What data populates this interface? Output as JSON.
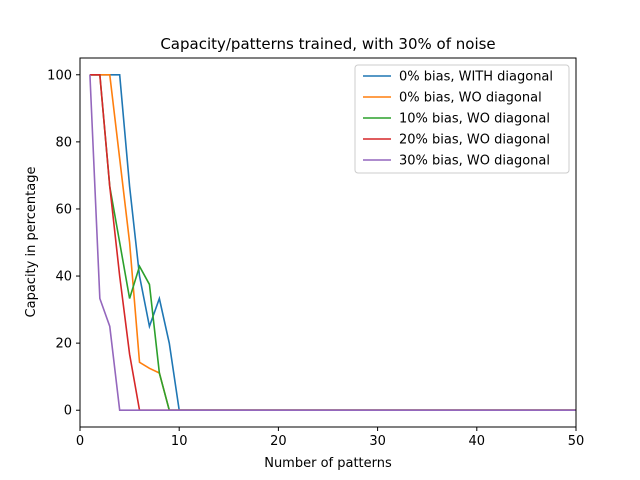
{
  "chart_data": {
    "type": "line",
    "title": "Capacity/patterns trained, with 30% of noise",
    "xlabel": "Number of patterns",
    "ylabel": "Capacity in percentage",
    "xlim": [
      0,
      50
    ],
    "ylim": [
      -5,
      105
    ],
    "xticks": [
      0,
      10,
      20,
      30,
      40,
      50
    ],
    "yticks": [
      0,
      20,
      40,
      60,
      80,
      100
    ],
    "grid": false,
    "legend_position": "top-right",
    "series": [
      {
        "name": "0% bias, WITH diagonal",
        "color": "#1f77b4",
        "x": [
          1,
          2,
          3,
          4,
          5,
          6,
          7,
          8,
          9,
          10,
          11,
          12,
          15,
          20,
          30,
          40,
          50
        ],
        "y": [
          100,
          100,
          100,
          100,
          66.7,
          40,
          25,
          33.3,
          20,
          0,
          0,
          0,
          0,
          0,
          0,
          0,
          0
        ]
      },
      {
        "name": "0% bias, WO diagonal",
        "color": "#ff7f0e",
        "x": [
          1,
          2,
          3,
          4,
          5,
          6,
          7,
          8,
          9,
          10,
          11,
          12,
          15,
          20,
          30,
          40,
          50
        ],
        "y": [
          100,
          100,
          100,
          75,
          50,
          14.3,
          12.5,
          11.1,
          0,
          0,
          0,
          0,
          0,
          0,
          0,
          0,
          0
        ]
      },
      {
        "name": "10% bias, WO diagonal",
        "color": "#2ca02c",
        "x": [
          1,
          2,
          3,
          4,
          5,
          6,
          7,
          8,
          9,
          10,
          11,
          12,
          15,
          20,
          30,
          40,
          50
        ],
        "y": [
          100,
          100,
          66.7,
          50,
          33.3,
          42.9,
          37.5,
          11.1,
          0,
          0,
          0,
          0,
          0,
          0,
          0,
          0,
          0
        ]
      },
      {
        "name": "20% bias, WO diagonal",
        "color": "#d62728",
        "x": [
          1,
          2,
          3,
          4,
          5,
          6,
          7,
          8,
          9,
          10,
          11,
          12,
          15,
          20,
          30,
          40,
          50
        ],
        "y": [
          100,
          100,
          66.7,
          40,
          16.7,
          0,
          0,
          0,
          0,
          0,
          0,
          0,
          0,
          0,
          0,
          0,
          0
        ]
      },
      {
        "name": "30% bias, WO diagonal",
        "color": "#9467bd",
        "x": [
          1,
          2,
          3,
          4,
          5,
          6,
          7,
          8,
          9,
          10,
          11,
          12,
          15,
          20,
          30,
          40,
          50
        ],
        "y": [
          100,
          33.3,
          25,
          0,
          0,
          0,
          0,
          0,
          0,
          0,
          0,
          0,
          0,
          0,
          0,
          0,
          0
        ]
      }
    ]
  }
}
